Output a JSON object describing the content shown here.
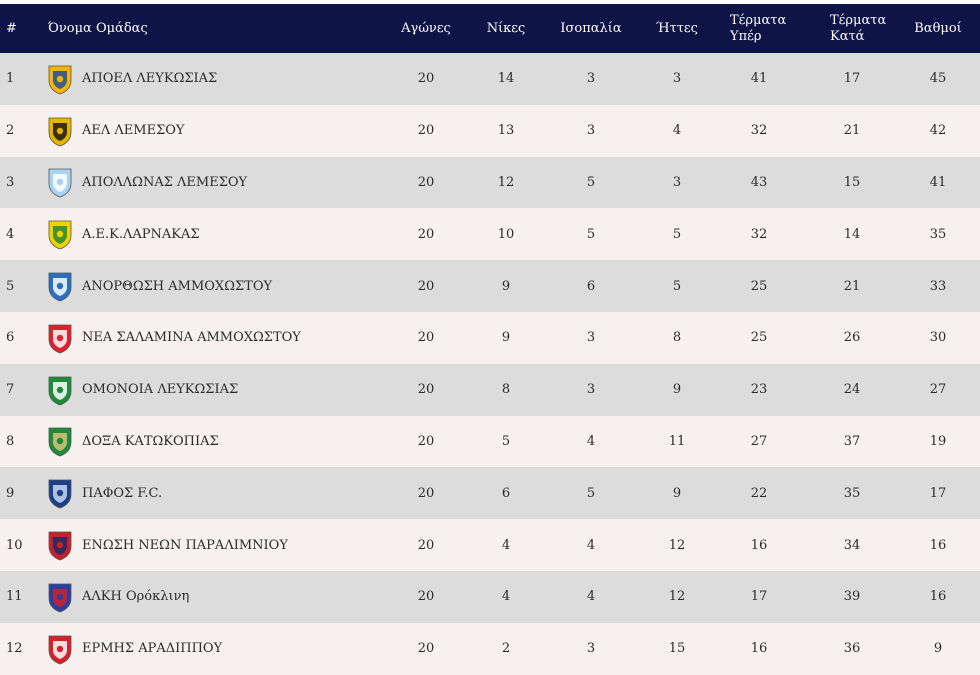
{
  "headers": {
    "pos": "#",
    "team": "Όνομα Ομάδας",
    "played": "Αγώνες",
    "wins": "Νίκες",
    "draws": "Ισοπαλία",
    "losses": "Ήττες",
    "goals_for_1": "Τέρματα",
    "goals_for_2": "Υπέρ",
    "goals_against_1": "Τέρματα",
    "goals_against_2": "Κατά",
    "points": "Βαθμοί"
  },
  "rows": [
    {
      "pos": "1",
      "team": "ΑΠΟΕΛ ΛΕΥΚΩΣΙΑΣ",
      "played": "20",
      "wins": "14",
      "draws": "3",
      "losses": "3",
      "gf": "41",
      "ga": "17",
      "pts": "45",
      "logo": "apoel-crest-icon",
      "color1": "#f5b400",
      "color2": "#1b4fa8"
    },
    {
      "pos": "2",
      "team": "ΑΕΛ ΛΕΜΕΣΟΥ",
      "played": "20",
      "wins": "13",
      "draws": "3",
      "losses": "4",
      "gf": "32",
      "ga": "21",
      "pts": "42",
      "logo": "ael-crest-icon",
      "color1": "#e6b500",
      "color2": "#1a1a1a"
    },
    {
      "pos": "3",
      "team": "ΑΠΟΛΛΩΝΑΣ ΛΕΜΕΣΟΥ",
      "played": "20",
      "wins": "12",
      "draws": "5",
      "losses": "3",
      "gf": "43",
      "ga": "15",
      "pts": "41",
      "logo": "apollon-crest-icon",
      "color1": "#a9d3f0",
      "color2": "#ffffff"
    },
    {
      "pos": "4",
      "team": "Α.Ε.Κ.ΛΑΡΝΑΚΑΣ",
      "played": "20",
      "wins": "10",
      "draws": "5",
      "losses": "5",
      "gf": "32",
      "ga": "14",
      "pts": "35",
      "logo": "aek-crest-icon",
      "color1": "#f2d100",
      "color2": "#1f8a3a"
    },
    {
      "pos": "5",
      "team": "ΑΝΟΡΘΩΣΗ ΑΜΜΟΧΩΣΤΟΥ",
      "played": "20",
      "wins": "9",
      "draws": "6",
      "losses": "5",
      "gf": "25",
      "ga": "21",
      "pts": "33",
      "logo": "anorthosis-crest-icon",
      "color1": "#2a6fc0",
      "color2": "#ffffff"
    },
    {
      "pos": "6",
      "team": "ΝΕΑ ΣΑΛΑΜΙΝΑ ΑΜΜΟΧΩΣΤΟΥ",
      "played": "20",
      "wins": "9",
      "draws": "3",
      "losses": "8",
      "gf": "25",
      "ga": "26",
      "pts": "30",
      "logo": "nea-salamina-crest-icon",
      "color1": "#e0202a",
      "color2": "#ffffff"
    },
    {
      "pos": "7",
      "team": "ΟΜΟΝΟΙΑ ΛΕΥΚΩΣΙΑΣ",
      "played": "20",
      "wins": "8",
      "draws": "3",
      "losses": "9",
      "gf": "23",
      "ga": "24",
      "pts": "27",
      "logo": "omonoia-crest-icon",
      "color1": "#1f8a3a",
      "color2": "#ffffff"
    },
    {
      "pos": "8",
      "team": "ΔΟΞΑ ΚΑΤΩΚΟΠΙΑΣ",
      "played": "20",
      "wins": "5",
      "draws": "4",
      "losses": "11",
      "gf": "27",
      "ga": "37",
      "pts": "19",
      "logo": "doxa-crest-icon",
      "color1": "#1f8a3a",
      "color2": "#d9c27a"
    },
    {
      "pos": "9",
      "team": "ΠΑΦΟΣ F.C.",
      "played": "20",
      "wins": "6",
      "draws": "5",
      "losses": "9",
      "gf": "22",
      "ga": "35",
      "pts": "17",
      "logo": "pafos-crest-icon",
      "color1": "#1b3f8a",
      "color2": "#c9d8ee"
    },
    {
      "pos": "10",
      "team": "ΕΝΩΣΗ ΝΕΩΝ ΠΑΡΑΛΙΜΝΙΟΥ",
      "played": "20",
      "wins": "4",
      "draws": "4",
      "losses": "12",
      "gf": "16",
      "ga": "34",
      "pts": "16",
      "logo": "enp-crest-icon",
      "color1": "#c8202a",
      "color2": "#1b2a6a"
    },
    {
      "pos": "11",
      "team": "ΑΛΚΗ Ορόκλινη",
      "played": "20",
      "wins": "4",
      "draws": "4",
      "losses": "12",
      "gf": "17",
      "ga": "39",
      "pts": "16",
      "logo": "alki-crest-icon",
      "color1": "#2a3fa0",
      "color2": "#d6202a"
    },
    {
      "pos": "12",
      "team": "ΕΡΜΗΣ ΑΡΑΔΙΠΠΟΥ",
      "played": "20",
      "wins": "2",
      "draws": "3",
      "losses": "15",
      "gf": "16",
      "ga": "36",
      "pts": "9",
      "logo": "ermis-crest-icon",
      "color1": "#d6202a",
      "color2": "#ffffff"
    }
  ]
}
